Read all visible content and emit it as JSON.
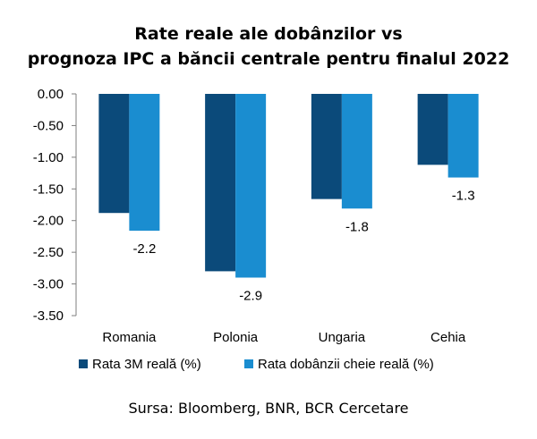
{
  "chart_data": {
    "type": "bar",
    "title_lines": [
      "Rate reale ale dobânzilor vs",
      "prognoza IPC a băncii centrale pentru finalul 2022"
    ],
    "categories": [
      "Romania",
      "Polonia",
      "Ungaria",
      "Cehia"
    ],
    "series": [
      {
        "name": "Rata 3M reală (%)",
        "color": "#0b4a7a",
        "values": [
          -1.88,
          -2.8,
          -1.66,
          -1.12
        ]
      },
      {
        "name": "Rata dobânzii cheie reală (%)",
        "color": "#1a8dd0",
        "values": [
          -2.16,
          -2.9,
          -1.81,
          -1.32
        ]
      }
    ],
    "data_labels": {
      "series_index": 1,
      "labels": [
        "-2.2",
        "-2.9",
        "-1.8",
        "-1.3"
      ]
    },
    "ylim": [
      -3.5,
      0
    ],
    "yticks": [
      0,
      -0.5,
      -1,
      -1.5,
      -2,
      -2.5,
      -3,
      -3.5
    ],
    "ytick_labels": [
      "0.00",
      "-0.50",
      "-1.00",
      "-1.50",
      "-2.00",
      "-2.50",
      "-3.00",
      "-3.50"
    ],
    "xlabel": "",
    "ylabel": "",
    "grid": false,
    "legend_position": "bottom"
  },
  "source": "Sursa: Bloomberg, BNR, BCR Cercetare"
}
